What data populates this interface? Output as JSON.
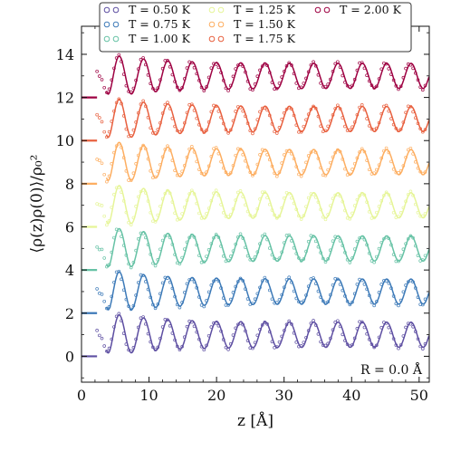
{
  "chart_data": {
    "type": "line",
    "title": "",
    "xlabel": "z [Å]",
    "ylabel": "⟨ρ(z)ρ(0)⟩/ρ₀²",
    "xlim": [
      0,
      51.5
    ],
    "ylim": [
      -1.2,
      15.3
    ],
    "xticks": [
      "0",
      "10",
      "20",
      "30",
      "40",
      "50"
    ],
    "yticks": [
      "0",
      "2",
      "4",
      "6",
      "8",
      "10",
      "12",
      "14"
    ],
    "annotation": "R = 0.0 Å",
    "legend_placement": "top-center",
    "grid": false,
    "offset_step": 2,
    "oscillation_period_angstrom": 3.6,
    "series": [
      {
        "name": "T = 0.50 K",
        "offset": 0,
        "color": "#5e4fa2"
      },
      {
        "name": "T = 0.75 K",
        "offset": 2,
        "color": "#3d7ab8"
      },
      {
        "name": "T = 1.00 K",
        "offset": 4,
        "color": "#66c2a5"
      },
      {
        "name": "T = 1.25 K",
        "offset": 6,
        "color": "#e6f598"
      },
      {
        "name": "T = 1.50 K",
        "offset": 8,
        "color": "#fdae61"
      },
      {
        "name": "T = 1.75 K",
        "offset": 10,
        "color": "#e8603f"
      },
      {
        "name": "T = 2.00 K",
        "offset": 12,
        "color": "#9e0142"
      }
    ]
  }
}
